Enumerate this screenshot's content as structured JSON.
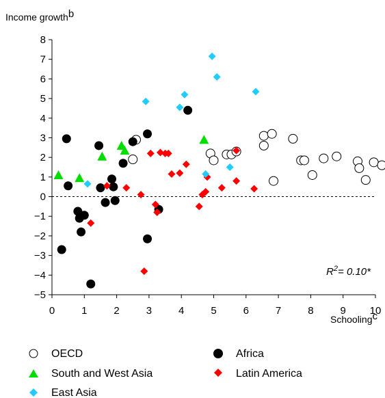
{
  "chart_data": {
    "type": "scatter",
    "ylabel": "Income growth",
    "ylabel_sup": "b",
    "xlabel": "Schooling",
    "xlabel_sup": "c",
    "xlim": [
      0,
      10
    ],
    "ylim": [
      -5,
      8
    ],
    "x_ticks": [
      0,
      1,
      2,
      3,
      4,
      5,
      6,
      7,
      8,
      9,
      10
    ],
    "y_ticks": [
      -5,
      -4,
      -3,
      -2,
      -1,
      0,
      1,
      2,
      3,
      4,
      5,
      6,
      7,
      8
    ],
    "tick_labels_x": [
      "0",
      "1",
      "2",
      "3",
      "4",
      "5",
      "6",
      "7",
      "8",
      "9",
      "10"
    ],
    "tick_labels_y": [
      "−5",
      "−4",
      "−3",
      "−2",
      "−1",
      "0",
      "1",
      "2",
      "3",
      "4",
      "5",
      "6",
      "7",
      "8"
    ],
    "reference_line": {
      "y": 0,
      "style": "dashed"
    },
    "annotation": {
      "base": "R",
      "sup": "2",
      "rest": "= 0.10*"
    },
    "legend_placement": "bottom",
    "series": [
      {
        "name": "OECD",
        "marker": "open-circle",
        "color": "#000000",
        "points": [
          [
            2.6,
            2.9
          ],
          [
            2.5,
            1.9
          ],
          [
            4.9,
            2.2
          ],
          [
            5.0,
            1.85
          ],
          [
            5.4,
            2.15
          ],
          [
            5.55,
            2.15
          ],
          [
            5.7,
            2.3
          ],
          [
            6.55,
            3.1
          ],
          [
            6.8,
            3.2
          ],
          [
            6.55,
            2.6
          ],
          [
            6.85,
            0.8
          ],
          [
            7.45,
            2.95
          ],
          [
            7.7,
            1.85
          ],
          [
            7.8,
            1.85
          ],
          [
            8.05,
            1.1
          ],
          [
            8.4,
            1.95
          ],
          [
            8.8,
            2.05
          ],
          [
            9.45,
            1.8
          ],
          [
            9.5,
            1.45
          ],
          [
            9.7,
            0.85
          ],
          [
            9.95,
            1.75
          ],
          [
            10.2,
            1.6
          ]
        ]
      },
      {
        "name": "Africa",
        "marker": "filled-circle",
        "color": "#000000",
        "points": [
          [
            0.3,
            -2.7
          ],
          [
            0.45,
            2.95
          ],
          [
            0.5,
            0.55
          ],
          [
            0.8,
            -0.75
          ],
          [
            0.85,
            -1.1
          ],
          [
            0.9,
            -1.8
          ],
          [
            1.0,
            -0.95
          ],
          [
            1.2,
            -4.45
          ],
          [
            1.45,
            2.6
          ],
          [
            1.5,
            0.45
          ],
          [
            1.65,
            -0.3
          ],
          [
            1.85,
            0.9
          ],
          [
            1.95,
            -0.2
          ],
          [
            1.9,
            0.5
          ],
          [
            2.2,
            1.7
          ],
          [
            2.5,
            2.8
          ],
          [
            2.95,
            3.2
          ],
          [
            2.95,
            -2.15
          ],
          [
            3.3,
            -0.65
          ],
          [
            4.2,
            4.4
          ]
        ]
      },
      {
        "name": "South and West Asia",
        "marker": "triangle",
        "color": "#00dd00",
        "points": [
          [
            0.2,
            1.1
          ],
          [
            0.85,
            0.95
          ],
          [
            1.55,
            2.05
          ],
          [
            2.15,
            2.6
          ],
          [
            2.25,
            2.35
          ],
          [
            4.7,
            2.9
          ]
        ]
      },
      {
        "name": "Latin America",
        "marker": "diamond",
        "color": "#ff0000",
        "points": [
          [
            1.2,
            -1.35
          ],
          [
            1.7,
            0.55
          ],
          [
            2.3,
            0.45
          ],
          [
            2.75,
            0.1
          ],
          [
            2.85,
            -3.8
          ],
          [
            3.05,
            2.2
          ],
          [
            3.2,
            -0.4
          ],
          [
            3.25,
            -0.8
          ],
          [
            3.35,
            2.25
          ],
          [
            3.5,
            2.2
          ],
          [
            3.6,
            2.2
          ],
          [
            3.7,
            1.15
          ],
          [
            3.95,
            1.2
          ],
          [
            4.15,
            1.65
          ],
          [
            4.55,
            -0.5
          ],
          [
            4.65,
            0.1
          ],
          [
            4.75,
            0.25
          ],
          [
            4.8,
            1.0
          ],
          [
            5.25,
            0.45
          ],
          [
            5.7,
            0.8
          ],
          [
            5.7,
            2.35
          ],
          [
            6.25,
            0.4
          ]
        ]
      },
      {
        "name": "East Asia",
        "marker": "diamond",
        "color": "#22ccff",
        "points": [
          [
            1.1,
            0.65
          ],
          [
            2.9,
            4.85
          ],
          [
            3.95,
            4.55
          ],
          [
            4.1,
            5.2
          ],
          [
            4.75,
            1.15
          ],
          [
            4.95,
            7.15
          ],
          [
            5.1,
            6.1
          ],
          [
            5.5,
            1.5
          ],
          [
            6.3,
            5.35
          ]
        ]
      }
    ]
  }
}
